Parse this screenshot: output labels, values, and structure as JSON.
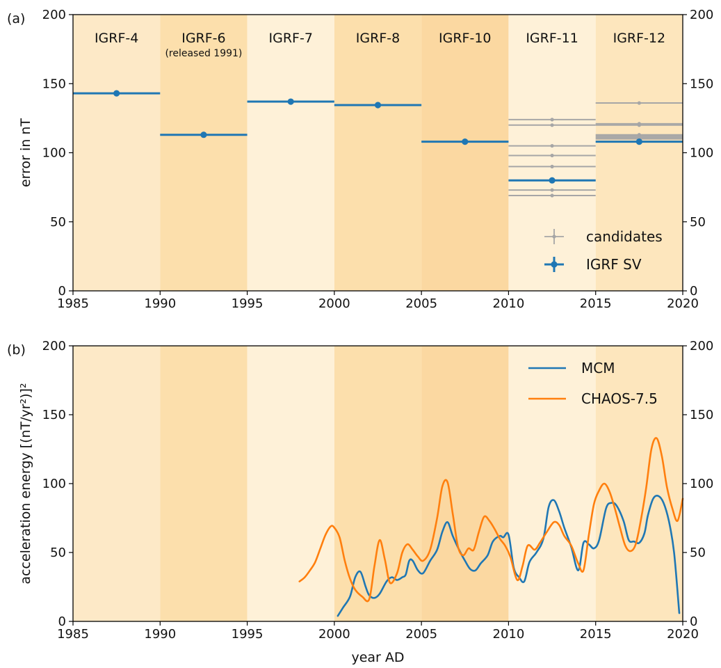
{
  "panel_a_label": "(a)",
  "panel_b_label": "(b)",
  "shading_colors": [
    "#fde9c7",
    "#fcdfac",
    "#fef1d8",
    "#fcdfac",
    "#fbd8a1",
    "#fef1d8",
    "#fde6bd"
  ],
  "chart_data": [
    {
      "type": "line",
      "panel": "(a)",
      "xlabel": "",
      "ylabel": "error in nT",
      "xlim": [
        1985,
        2020
      ],
      "ylim": [
        0,
        200
      ],
      "x_ticks": [
        1985,
        1990,
        1995,
        2000,
        2005,
        2010,
        2015,
        2020
      ],
      "y_ticks": [
        0,
        50,
        100,
        150,
        200
      ],
      "right_axis_ticks": true,
      "grid": false,
      "legend_position": "lower-right",
      "epochs": [
        {
          "label": "IGRF-4",
          "note": "",
          "start": 1985,
          "end": 1990
        },
        {
          "label": "IGRF-6",
          "note": "(released 1991)",
          "start": 1990,
          "end": 1995
        },
        {
          "label": "IGRF-7",
          "note": "",
          "start": 1995,
          "end": 2000
        },
        {
          "label": "IGRF-8",
          "note": "",
          "start": 2000,
          "end": 2005
        },
        {
          "label": "IGRF-10",
          "note": "",
          "start": 2005,
          "end": 2010
        },
        {
          "label": "IGRF-11",
          "note": "",
          "start": 2010,
          "end": 2015
        },
        {
          "label": "IGRF-12",
          "note": "",
          "start": 2015,
          "end": 2020
        }
      ],
      "series": [
        {
          "name": "candidates",
          "color": "#a6a6a6",
          "segments": [
            {
              "start": 2010,
              "end": 2015,
              "mid": 2012.5,
              "values": [
                124,
                120,
                105,
                98,
                90,
                80,
                73,
                69
              ]
            },
            {
              "start": 2015,
              "end": 2020,
              "mid": 2017.5,
              "values": [
                136,
                121,
                120,
                113,
                112,
                111,
                110
              ]
            }
          ]
        },
        {
          "name": "IGRF SV",
          "color": "#1f77b4",
          "segments": [
            {
              "start": 1985,
              "end": 1990,
              "mid": 1987.5,
              "value": 143
            },
            {
              "start": 1990,
              "end": 1995,
              "mid": 1992.5,
              "value": 113
            },
            {
              "start": 1995,
              "end": 2000,
              "mid": 1997.5,
              "value": 137
            },
            {
              "start": 2000,
              "end": 2005,
              "mid": 2002.5,
              "value": 134.5
            },
            {
              "start": 2005,
              "end": 2010,
              "mid": 2007.5,
              "value": 108
            },
            {
              "start": 2010,
              "end": 2015,
              "mid": 2012.5,
              "value": 80
            },
            {
              "start": 2015,
              "end": 2020,
              "mid": 2017.5,
              "value": 108
            }
          ]
        }
      ]
    },
    {
      "type": "line",
      "panel": "(b)",
      "xlabel": "year AD",
      "ylabel": "acceleration energy [(nT/yr²)]²",
      "xlim": [
        1985,
        2020
      ],
      "ylim": [
        0,
        200
      ],
      "x_ticks": [
        1985,
        1990,
        1995,
        2000,
        2005,
        2010,
        2015,
        2020
      ],
      "y_ticks": [
        0,
        50,
        100,
        150,
        200
      ],
      "right_axis_ticks": true,
      "grid": false,
      "legend_position": "top-right",
      "series": [
        {
          "name": "MCM",
          "color": "#1f77b4",
          "x": [
            2000.2,
            2000.5,
            2000.9,
            2001.2,
            2001.5,
            2001.8,
            2002.0,
            2002.3,
            2002.6,
            2003.0,
            2003.3,
            2003.6,
            2003.9,
            2004.1,
            2004.3,
            2004.5,
            2004.8,
            2005.1,
            2005.5,
            2005.9,
            2006.2,
            2006.5,
            2006.8,
            2007.2,
            2007.5,
            2007.8,
            2008.1,
            2008.4,
            2008.8,
            2009.1,
            2009.5,
            2009.7,
            2010.0,
            2010.3,
            2010.6,
            2010.9,
            2011.2,
            2011.6,
            2012.0,
            2012.3,
            2012.6,
            2012.9,
            2013.2,
            2013.6,
            2014.0,
            2014.3,
            2014.6,
            2014.9,
            2015.2,
            2015.6,
            2015.9,
            2016.2,
            2016.6,
            2016.9,
            2017.2,
            2017.5,
            2017.8,
            2018.0,
            2018.3,
            2018.6,
            2018.9,
            2019.2,
            2019.5,
            2019.8
          ],
          "values": [
            4,
            10,
            18,
            32,
            36,
            25,
            19,
            17,
            20,
            29,
            32,
            30,
            32,
            34,
            44,
            44,
            37,
            35,
            44,
            52,
            65,
            72,
            62,
            51,
            44,
            38,
            37,
            42,
            48,
            58,
            62,
            61,
            63,
            39,
            32,
            29,
            43,
            50,
            60,
            83,
            88,
            80,
            68,
            54,
            37,
            57,
            56,
            53,
            59,
            82,
            86,
            84,
            73,
            59,
            58,
            57,
            64,
            77,
            89,
            91,
            86,
            73,
            50,
            6
          ]
        },
        {
          "name": "CHAOS-7.5",
          "color": "#ff7f0e",
          "x": [
            1998.0,
            1998.3,
            1998.6,
            1998.9,
            1999.2,
            1999.5,
            1999.8,
            2000.0,
            2000.3,
            2000.6,
            2000.9,
            2001.2,
            2001.6,
            2002.0,
            2002.3,
            2002.6,
            2002.9,
            2003.2,
            2003.6,
            2003.9,
            2004.2,
            2004.5,
            2004.8,
            2005.1,
            2005.5,
            2005.9,
            2006.2,
            2006.5,
            2006.8,
            2007.1,
            2007.4,
            2007.7,
            2008.0,
            2008.3,
            2008.6,
            2008.9,
            2009.2,
            2009.5,
            2009.8,
            2010.1,
            2010.5,
            2010.8,
            2011.1,
            2011.5,
            2011.8,
            2012.2,
            2012.6,
            2012.9,
            2013.2,
            2013.6,
            2014.0,
            2014.3,
            2014.6,
            2014.9,
            2015.2,
            2015.5,
            2015.8,
            2016.1,
            2016.4,
            2016.7,
            2017.0,
            2017.3,
            2017.6,
            2017.9,
            2018.2,
            2018.5,
            2018.8,
            2019.1,
            2019.4,
            2019.7,
            2020.0
          ],
          "values": [
            29,
            32,
            37,
            43,
            53,
            63,
            69,
            68,
            61,
            44,
            31,
            23,
            18,
            16,
            40,
            59,
            45,
            28,
            35,
            50,
            56,
            52,
            47,
            44,
            52,
            75,
            98,
            101,
            78,
            54,
            48,
            53,
            52,
            65,
            76,
            73,
            67,
            60,
            55,
            47,
            30,
            40,
            55,
            52,
            57,
            65,
            72,
            70,
            62,
            55,
            42,
            37,
            62,
            85,
            95,
            100,
            94,
            82,
            68,
            55,
            51,
            56,
            74,
            97,
            125,
            133,
            120,
            97,
            82,
            73,
            89
          ]
        }
      ]
    }
  ]
}
